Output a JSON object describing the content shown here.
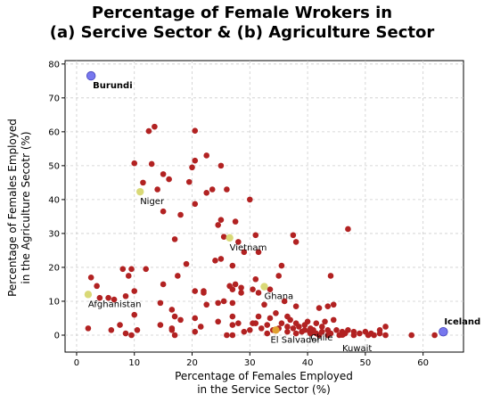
{
  "chart_data": {
    "type": "scatter",
    "title_line1": "Percentage of Female Wrokers in",
    "title_line2": "(a) Sercive Sector & (b) Agriculture Sector",
    "xlabel_line1": "Percentage of Females Employed",
    "xlabel_line2": "in the Service Sector (%)",
    "ylabel_line1": "Percentage of Females Employed",
    "ylabel_line2": "in the Agriculture Secotr (%)",
    "xlim": [
      -2,
      67
    ],
    "ylim": [
      -5,
      81
    ],
    "xticks": [
      0,
      10,
      20,
      30,
      40,
      50,
      60
    ],
    "yticks": [
      0,
      10,
      20,
      30,
      40,
      50,
      60,
      70,
      80
    ],
    "grid": true,
    "colors": {
      "default": "#b22222",
      "extreme": "#7777ee",
      "highlight": "#d9d977",
      "highlight_alt": "#e0a030"
    },
    "points": [
      [
        12.5,
        60.2
      ],
      [
        13.5,
        61.5
      ],
      [
        20.5,
        60.3
      ],
      [
        10,
        50.7
      ],
      [
        13,
        50.5
      ],
      [
        20.5,
        51.5
      ],
      [
        22.5,
        53
      ],
      [
        25,
        50
      ],
      [
        15,
        47.5
      ],
      [
        16,
        46
      ],
      [
        11.5,
        45
      ],
      [
        19.5,
        45.2
      ],
      [
        20,
        49.5
      ],
      [
        14,
        43
      ],
      [
        22.5,
        42
      ],
      [
        23.5,
        43
      ],
      [
        26,
        43
      ],
      [
        20.5,
        38.7
      ],
      [
        15,
        36.5
      ],
      [
        18,
        35.5
      ],
      [
        25,
        34
      ],
      [
        27.5,
        33.5
      ],
      [
        24.5,
        32.5
      ],
      [
        30,
        40
      ],
      [
        47,
        31.3
      ],
      [
        25.5,
        29
      ],
      [
        28,
        27.5
      ],
      [
        17,
        28.3
      ],
      [
        37.5,
        29.5
      ],
      [
        38,
        27.5
      ],
      [
        31,
        29.5
      ],
      [
        31.5,
        24.5
      ],
      [
        29,
        24.5
      ],
      [
        24,
        22
      ],
      [
        25,
        22.5
      ],
      [
        19,
        21
      ],
      [
        35.5,
        20.5
      ],
      [
        35,
        17.5
      ],
      [
        27,
        20.5
      ],
      [
        9.5,
        19.5
      ],
      [
        12,
        19.5
      ],
      [
        8,
        19.5
      ],
      [
        2.5,
        17
      ],
      [
        9,
        17.5
      ],
      [
        17.5,
        17.5
      ],
      [
        27.5,
        15
      ],
      [
        28.5,
        14
      ],
      [
        31,
        16.5
      ],
      [
        44,
        17.5
      ],
      [
        3.5,
        14.5
      ],
      [
        10,
        13
      ],
      [
        15,
        15
      ],
      [
        22,
        13
      ],
      [
        20.5,
        13
      ],
      [
        22,
        12.5
      ],
      [
        26.5,
        14.5
      ],
      [
        27,
        13.5
      ],
      [
        28.5,
        12.5
      ],
      [
        30.5,
        13.5
      ],
      [
        31.5,
        12.5
      ],
      [
        33.5,
        13.5
      ],
      [
        5.5,
        11
      ],
      [
        6.5,
        10.5
      ],
      [
        8.5,
        11.5
      ],
      [
        4,
        11
      ],
      [
        14.5,
        9.5
      ],
      [
        22.5,
        9
      ],
      [
        24.5,
        9.5
      ],
      [
        25.5,
        10
      ],
      [
        27,
        9.5
      ],
      [
        32.5,
        9
      ],
      [
        36,
        10
      ],
      [
        38,
        8.5
      ],
      [
        42,
        8
      ],
      [
        43.5,
        8.5
      ],
      [
        44.5,
        9
      ],
      [
        16.5,
        7.5
      ],
      [
        10,
        6
      ],
      [
        17,
        5.5
      ],
      [
        18,
        4.5
      ],
      [
        20.5,
        5
      ],
      [
        24.5,
        4
      ],
      [
        27,
        5.5
      ],
      [
        31.5,
        5.5
      ],
      [
        33.5,
        5
      ],
      [
        34.5,
        6.5
      ],
      [
        36.5,
        5.5
      ],
      [
        37,
        4.5
      ],
      [
        40,
        4
      ],
      [
        41.5,
        3.5
      ],
      [
        43,
        4
      ],
      [
        44.5,
        4.5
      ],
      [
        7.5,
        3
      ],
      [
        14.5,
        3
      ],
      [
        16.5,
        2
      ],
      [
        21.5,
        2.5
      ],
      [
        27,
        3
      ],
      [
        28,
        3.5
      ],
      [
        31,
        3.5
      ],
      [
        33,
        3
      ],
      [
        35.5,
        3.5
      ],
      [
        36.5,
        2.5
      ],
      [
        38,
        3.5
      ],
      [
        39.5,
        3
      ],
      [
        40.5,
        2
      ],
      [
        42.5,
        2.5
      ],
      [
        43.5,
        1.5
      ],
      [
        45,
        1.5
      ],
      [
        46,
        1
      ],
      [
        47,
        1.5
      ],
      [
        48,
        1
      ],
      [
        50,
        1
      ],
      [
        51,
        0.5
      ],
      [
        52.5,
        1.5
      ],
      [
        53.5,
        2.5
      ],
      [
        2,
        2
      ],
      [
        6,
        1.5
      ],
      [
        8.5,
        0.5
      ],
      [
        9.5,
        0
      ],
      [
        10.5,
        1.5
      ],
      [
        16.5,
        1.5
      ],
      [
        17,
        0
      ],
      [
        20.5,
        1
      ],
      [
        26,
        0
      ],
      [
        27,
        0
      ],
      [
        29,
        1
      ],
      [
        30,
        1.5
      ],
      [
        32,
        2
      ],
      [
        34,
        1.5
      ],
      [
        36.5,
        1
      ],
      [
        38,
        0.5
      ],
      [
        39,
        1
      ],
      [
        40.5,
        0.5
      ],
      [
        41,
        1.5
      ],
      [
        42,
        0
      ],
      [
        44,
        0.5
      ],
      [
        45.5,
        0
      ],
      [
        46.5,
        0.5
      ],
      [
        49,
        0.5
      ],
      [
        50.5,
        0
      ],
      [
        52.5,
        0.5
      ],
      [
        53.5,
        0
      ],
      [
        58,
        0
      ],
      [
        62,
        0
      ],
      [
        39.5,
        1.5
      ],
      [
        37.5,
        2
      ],
      [
        33,
        0.5
      ],
      [
        35,
        2
      ],
      [
        41.5,
        0.5
      ],
      [
        48,
        0
      ],
      [
        51.5,
        0
      ],
      [
        43.5,
        0
      ],
      [
        30.5,
        3.5
      ],
      [
        38.5,
        2.5
      ],
      [
        42.5,
        1
      ]
    ],
    "labeled_points": [
      {
        "name": "Burundi",
        "x": 2.5,
        "y": 76.5,
        "color": "extreme",
        "bold": true
      },
      {
        "name": "Iceland",
        "x": 63.5,
        "y": 1,
        "color": "extreme",
        "bold": true
      },
      {
        "name": "Niger",
        "x": 11,
        "y": 42.3,
        "color": "highlight",
        "bold": false
      },
      {
        "name": "Vietnam",
        "x": 26.5,
        "y": 28.7,
        "color": "highlight",
        "bold": false
      },
      {
        "name": "Afghanistan",
        "x": 2,
        "y": 12,
        "color": "highlight",
        "bold": false
      },
      {
        "name": "Ghana",
        "x": 32.5,
        "y": 14.3,
        "color": "highlight",
        "bold": false
      },
      {
        "name": "El Salvador",
        "x": 34.5,
        "y": 1.5,
        "color": "highlight_alt",
        "bold": false
      },
      {
        "name": "Chile",
        "x": 40.5,
        "y": 1,
        "color": "default",
        "bold": false
      },
      {
        "name": "Kuwait",
        "x": 46,
        "y": 0.3,
        "color": "default",
        "bold": false
      }
    ]
  }
}
